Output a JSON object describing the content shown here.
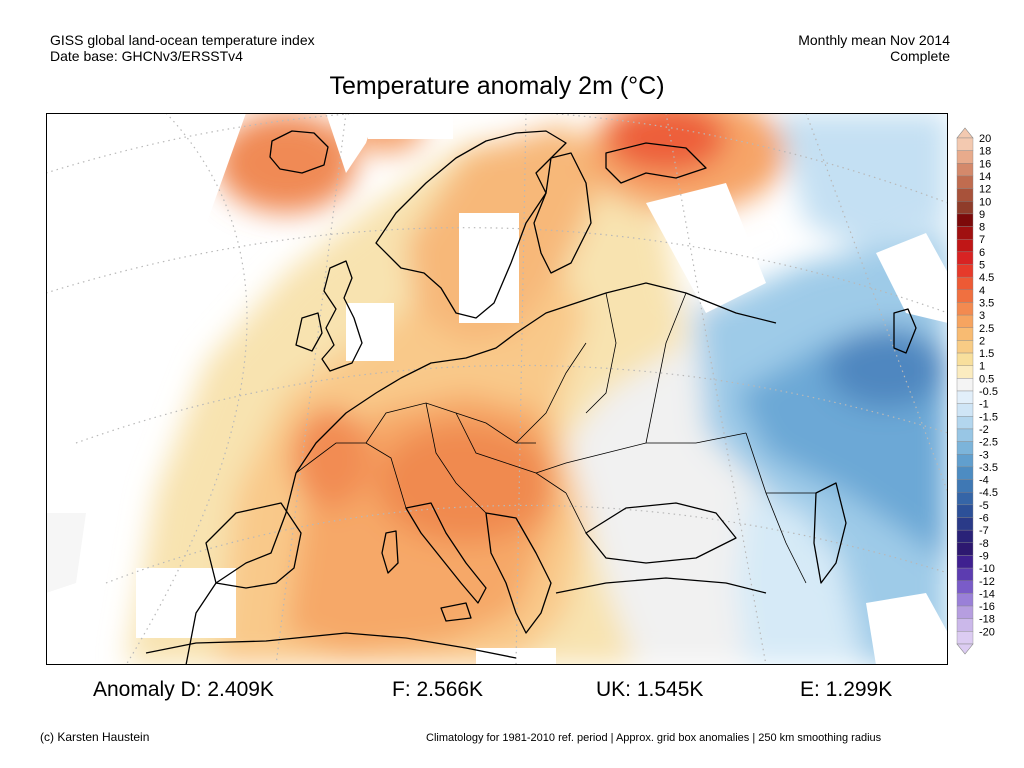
{
  "header": {
    "left_line1": "GISS global land-ocean temperature index",
    "left_line2": "Date base: GHCNv3/ERSSTv4",
    "right_line1": "Monthly mean Nov 2014",
    "right_line2": "Complete"
  },
  "title": "Temperature anomaly 2m (°C)",
  "colorbar": {
    "levels": [
      "20",
      "18",
      "16",
      "14",
      "12",
      "10",
      "9",
      "8",
      "7",
      "6",
      "5",
      "4.5",
      "4",
      "3.5",
      "3",
      "2.5",
      "2",
      "1.5",
      "1",
      "0.5",
      "-0.5",
      "-1",
      "-1.5",
      "-2",
      "-2.5",
      "-3",
      "-3.5",
      "-4",
      "-4.5",
      "-5",
      "-6",
      "-7",
      "-8",
      "-9",
      "-10",
      "-12",
      "-14",
      "-16",
      "-18",
      "-20"
    ],
    "colors": [
      "#f3c9b0",
      "#e8ab8c",
      "#d4896b",
      "#c06c4f",
      "#a8523a",
      "#8f3c2a",
      "#7c0a0a",
      "#a01010",
      "#c01616",
      "#d82323",
      "#e63a2a",
      "#ed5a35",
      "#f07040",
      "#f38a50",
      "#f6a460",
      "#f8bb72",
      "#f8cc85",
      "#f8df9c",
      "#fbecc0",
      "#f4f4f4",
      "#e2effa",
      "#cfe5f6",
      "#b3d6ee",
      "#98c6e5",
      "#7cb4da",
      "#619fce",
      "#4d8cc2",
      "#3f78b4",
      "#3565a7",
      "#2c5098",
      "#2a3a88",
      "#2a2278",
      "#2d1870",
      "#3f2090",
      "#5c3cb0",
      "#7a5cc8",
      "#9a80d8",
      "#b69ee0",
      "#cbb8ea",
      "#dcccf2"
    ]
  },
  "stats": {
    "d": "Anomaly D: 2.409K",
    "f": "F: 2.566K",
    "uk": "UK: 1.545K",
    "e": "E: 1.299K"
  },
  "footer": {
    "left": "(c) Karsten Haustein",
    "right": "Climatology for 1981-2010 ref. period | Approx. grid box anomalies | 250 km smoothing radius"
  }
}
